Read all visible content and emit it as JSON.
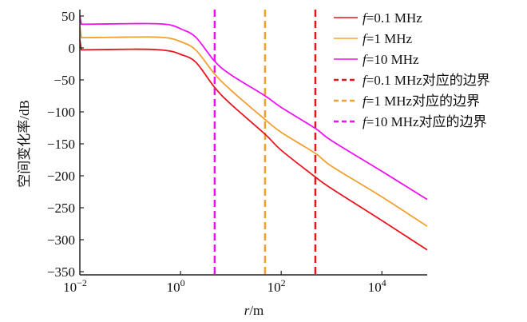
{
  "chart_data": {
    "type": "line",
    "title": "",
    "xlabel": "r/m",
    "xlabel_var": "r",
    "xlabel_unit": "/m",
    "ylabel": "空间变化率/dB",
    "xscale": "log",
    "xlim_log10": [
      -2,
      4.9
    ],
    "ylim": [
      -350,
      55
    ],
    "x_ticks": [
      {
        "exp": -2,
        "base": "10",
        "sup": "−2"
      },
      {
        "exp": 0,
        "base": "10",
        "sup": "0"
      },
      {
        "exp": 2,
        "base": "10",
        "sup": "2"
      },
      {
        "exp": 4,
        "base": "10",
        "sup": "4"
      }
    ],
    "y_ticks": [
      50,
      0,
      -50,
      -100,
      -150,
      -200,
      -250,
      -300,
      -350
    ],
    "y_tick_labels": [
      "50",
      "0",
      "−50",
      "−100",
      "−150",
      "−200",
      "−250",
      "−300",
      "−350"
    ],
    "grid": false,
    "legend_position": "top-right",
    "series": [
      {
        "name": "f=0.1 MHz",
        "legend_var": "f",
        "legend_rest": "=0.1 MHz",
        "color": "#e8141c",
        "style": "solid",
        "log10_r": [
          -2,
          -1.97,
          -1,
          -0.5,
          -0.2,
          0,
          0.3,
          0.68,
          1,
          1.68,
          2,
          2.68,
          3,
          4,
          4.9
        ],
        "values": [
          13,
          -3,
          -2,
          -2.5,
          -5,
          -10,
          -22,
          -62,
          -88,
          -135,
          -160,
          -202,
          -220,
          -270,
          -316
        ]
      },
      {
        "name": "f=1 MHz",
        "legend_var": "f",
        "legend_rest": "=1 MHz",
        "color": "#f0a030",
        "style": "solid",
        "log10_r": [
          -2,
          -1.97,
          -1,
          -0.5,
          -0.2,
          0,
          0.3,
          0.68,
          1,
          1.68,
          2,
          2.68,
          3,
          4,
          4.9
        ],
        "values": [
          33,
          16,
          17,
          17,
          15,
          10,
          -3,
          -41,
          -66,
          -112,
          -132,
          -165,
          -185,
          -233,
          -279
        ]
      },
      {
        "name": "f=10 MHz",
        "legend_var": "f",
        "legend_rest": "=10 MHz",
        "color": "#ee10ee",
        "style": "solid",
        "log10_r": [
          -2,
          -1.97,
          -1,
          -0.5,
          -0.2,
          0,
          0.3,
          0.68,
          1,
          1.68,
          2,
          2.68,
          3,
          4,
          4.9
        ],
        "values": [
          50,
          37,
          38,
          38,
          36,
          30,
          17,
          -21,
          -42,
          -75,
          -93,
          -126,
          -145,
          -193,
          -237
        ]
      }
    ],
    "boundaries": [
      {
        "name": "f=0.1 MHz对应的边界",
        "legend_var": "f",
        "legend_rest": "=0.1 MHz对应的边界",
        "color": "#e8141c",
        "style": "dashed",
        "r": 477
      },
      {
        "name": "f=1 MHz对应的边界",
        "legend_var": "f",
        "legend_rest": "=1 MHz对应的边界",
        "color": "#f0a030",
        "style": "dashed",
        "r": 47.7
      },
      {
        "name": "f=10 MHz对应的边界",
        "legend_var": "f",
        "legend_rest": "=10 MHz对应的边界",
        "color": "#ee10ee",
        "style": "dashed",
        "r": 4.77
      }
    ]
  }
}
